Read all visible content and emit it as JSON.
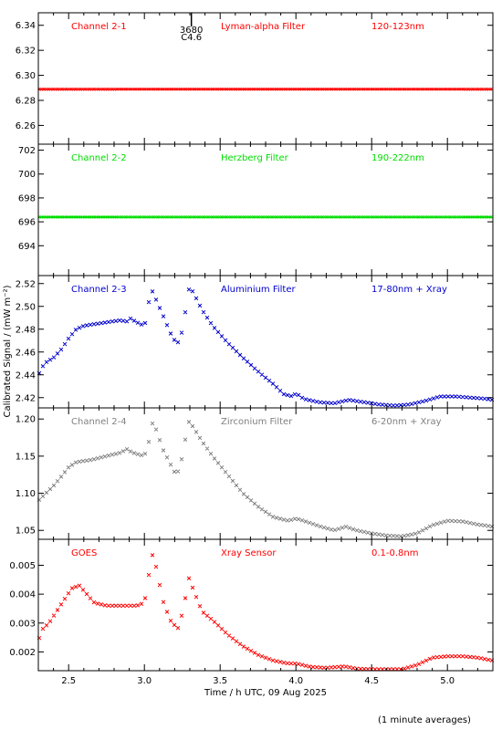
{
  "chart_data": {
    "type": "scatter",
    "xlabel": "Time / h UTC, 09 Aug 2025",
    "ylabel": "Calibrated Signal / (mW m⁻²)",
    "footnote": "(1 minute averages)",
    "xlim": [
      2.3,
      5.3
    ],
    "xticks": [
      2.5,
      3.0,
      3.5,
      4.0,
      4.5,
      5.0
    ],
    "xtick_labels": [
      "2.5",
      "3.0",
      "3.5",
      "4.0",
      "4.5",
      "5.0"
    ],
    "annotation": {
      "x": 3.31,
      "text_top": "3680",
      "text_bottom": "C4.6"
    },
    "panels": [
      {
        "channel": "Channel 2-1",
        "filter": "Lyman-alpha Filter",
        "band": "120-123nm",
        "color": "#ff0000",
        "ylim": [
          6.245,
          6.35
        ],
        "yticks": [
          6.26,
          6.28,
          6.3,
          6.32,
          6.34
        ],
        "ytick_labels": [
          "6.26",
          "6.28",
          "6.30",
          "6.32",
          "6.34"
        ],
        "shape": [
          [
            2.3,
            6.289
          ],
          [
            5.3,
            6.289
          ]
        ]
      },
      {
        "channel": "Channel 2-2",
        "filter": "Herzberg Filter",
        "band": "190-222nm",
        "color": "#00dd00",
        "ylim": [
          691.5,
          702.5
        ],
        "yticks": [
          694,
          696,
          698,
          700,
          702
        ],
        "ytick_labels": [
          "694",
          "696",
          "698",
          "700",
          "702"
        ],
        "shape": [
          [
            2.3,
            696.4
          ],
          [
            5.3,
            696.4
          ]
        ]
      },
      {
        "channel": "Channel 2-3",
        "filter": "Aluminium Filter",
        "band": "17-80nm + Xray",
        "color": "#0000cc",
        "ylim": [
          2.411,
          2.527
        ],
        "yticks": [
          2.42,
          2.44,
          2.46,
          2.48,
          2.5,
          2.52
        ],
        "ytick_labels": [
          "2.42",
          "2.44",
          "2.46",
          "2.48",
          "2.50",
          "2.52"
        ],
        "shape": [
          [
            2.3,
            2.44
          ],
          [
            2.34,
            2.45
          ],
          [
            2.4,
            2.455
          ],
          [
            2.45,
            2.462
          ],
          [
            2.5,
            2.472
          ],
          [
            2.55,
            2.48
          ],
          [
            2.6,
            2.483
          ],
          [
            2.7,
            2.485
          ],
          [
            2.8,
            2.487
          ],
          [
            2.85,
            2.488
          ],
          [
            2.88,
            2.486
          ],
          [
            2.9,
            2.49
          ],
          [
            2.95,
            2.486
          ],
          [
            3.0,
            2.483
          ],
          [
            3.02,
            2.493
          ],
          [
            3.04,
            2.517
          ],
          [
            3.07,
            2.508
          ],
          [
            3.12,
            2.493
          ],
          [
            3.17,
            2.477
          ],
          [
            3.2,
            2.47
          ],
          [
            3.23,
            2.468
          ],
          [
            3.26,
            2.485
          ],
          [
            3.29,
            2.515
          ],
          [
            3.32,
            2.513
          ],
          [
            3.38,
            2.497
          ],
          [
            3.45,
            2.483
          ],
          [
            3.55,
            2.468
          ],
          [
            3.65,
            2.455
          ],
          [
            3.75,
            2.443
          ],
          [
            3.85,
            2.432
          ],
          [
            3.92,
            2.423
          ],
          [
            3.98,
            2.421
          ],
          [
            4.0,
            2.424
          ],
          [
            4.05,
            2.419
          ],
          [
            4.15,
            2.416
          ],
          [
            4.25,
            2.415
          ],
          [
            4.35,
            2.418
          ],
          [
            4.45,
            2.416
          ],
          [
            4.55,
            2.414
          ],
          [
            4.65,
            2.413
          ],
          [
            4.75,
            2.414
          ],
          [
            4.85,
            2.417
          ],
          [
            4.95,
            2.421
          ],
          [
            5.05,
            2.421
          ],
          [
            5.15,
            2.42
          ],
          [
            5.25,
            2.419
          ],
          [
            5.3,
            2.418
          ]
        ]
      },
      {
        "channel": "Channel 2-4",
        "filter": "Zirconium Filter",
        "band": "6-20nm + Xray",
        "color": "#808080",
        "ylim": [
          1.038,
          1.215
        ],
        "yticks": [
          1.05,
          1.1,
          1.15,
          1.2
        ],
        "ytick_labels": [
          "1.05",
          "1.10",
          "1.15",
          "1.20"
        ],
        "shape": [
          [
            2.3,
            1.09
          ],
          [
            2.35,
            1.1
          ],
          [
            2.4,
            1.11
          ],
          [
            2.45,
            1.122
          ],
          [
            2.5,
            1.135
          ],
          [
            2.55,
            1.142
          ],
          [
            2.65,
            1.145
          ],
          [
            2.75,
            1.15
          ],
          [
            2.85,
            1.155
          ],
          [
            2.88,
            1.16
          ],
          [
            2.92,
            1.155
          ],
          [
            3.0,
            1.15
          ],
          [
            3.03,
            1.17
          ],
          [
            3.05,
            1.195
          ],
          [
            3.08,
            1.185
          ],
          [
            3.12,
            1.16
          ],
          [
            3.17,
            1.14
          ],
          [
            3.2,
            1.128
          ],
          [
            3.23,
            1.13
          ],
          [
            3.26,
            1.16
          ],
          [
            3.29,
            1.197
          ],
          [
            3.32,
            1.19
          ],
          [
            3.38,
            1.17
          ],
          [
            3.45,
            1.15
          ],
          [
            3.55,
            1.125
          ],
          [
            3.65,
            1.1
          ],
          [
            3.75,
            1.082
          ],
          [
            3.85,
            1.068
          ],
          [
            3.95,
            1.063
          ],
          [
            4.0,
            1.066
          ],
          [
            4.05,
            1.063
          ],
          [
            4.15,
            1.056
          ],
          [
            4.25,
            1.05
          ],
          [
            4.33,
            1.055
          ],
          [
            4.4,
            1.05
          ],
          [
            4.5,
            1.046
          ],
          [
            4.6,
            1.043
          ],
          [
            4.7,
            1.042
          ],
          [
            4.8,
            1.046
          ],
          [
            4.9,
            1.057
          ],
          [
            5.0,
            1.063
          ],
          [
            5.1,
            1.062
          ],
          [
            5.2,
            1.058
          ],
          [
            5.3,
            1.055
          ]
        ]
      },
      {
        "channel": "GOES",
        "filter": "Xray Sensor",
        "band": "0.1-0.8nm",
        "color": "#ff0000",
        "ylim": [
          0.00135,
          0.0059
        ],
        "yticks": [
          0.002,
          0.003,
          0.004,
          0.005
        ],
        "ytick_labels": [
          "0.002",
          "0.003",
          "0.004",
          "0.005"
        ],
        "shape": [
          [
            2.3,
            0.0024
          ],
          [
            2.33,
            0.0028
          ],
          [
            2.37,
            0.003
          ],
          [
            2.42,
            0.0034
          ],
          [
            2.47,
            0.0038
          ],
          [
            2.52,
            0.0042
          ],
          [
            2.57,
            0.0043
          ],
          [
            2.62,
            0.004
          ],
          [
            2.67,
            0.0037
          ],
          [
            2.75,
            0.0036
          ],
          [
            2.85,
            0.0036
          ],
          [
            2.95,
            0.0036
          ],
          [
            3.0,
            0.0037
          ],
          [
            3.03,
            0.0047
          ],
          [
            3.05,
            0.0054
          ],
          [
            3.08,
            0.0049
          ],
          [
            3.12,
            0.0038
          ],
          [
            3.17,
            0.0031
          ],
          [
            3.22,
            0.0028
          ],
          [
            3.26,
            0.0035
          ],
          [
            3.29,
            0.0046
          ],
          [
            3.32,
            0.0042
          ],
          [
            3.38,
            0.0034
          ],
          [
            3.45,
            0.0031
          ],
          [
            3.55,
            0.0026
          ],
          [
            3.65,
            0.0022
          ],
          [
            3.75,
            0.0019
          ],
          [
            3.85,
            0.0017
          ],
          [
            3.95,
            0.0016
          ],
          [
            4.0,
            0.0016
          ],
          [
            4.1,
            0.00148
          ],
          [
            4.2,
            0.00145
          ],
          [
            4.32,
            0.0015
          ],
          [
            4.4,
            0.00142
          ],
          [
            4.5,
            0.0014
          ],
          [
            4.6,
            0.0014
          ],
          [
            4.7,
            0.0014
          ],
          [
            4.8,
            0.00155
          ],
          [
            4.9,
            0.0018
          ],
          [
            5.0,
            0.00185
          ],
          [
            5.1,
            0.00185
          ],
          [
            5.2,
            0.0018
          ],
          [
            5.3,
            0.0017
          ]
        ]
      }
    ]
  }
}
